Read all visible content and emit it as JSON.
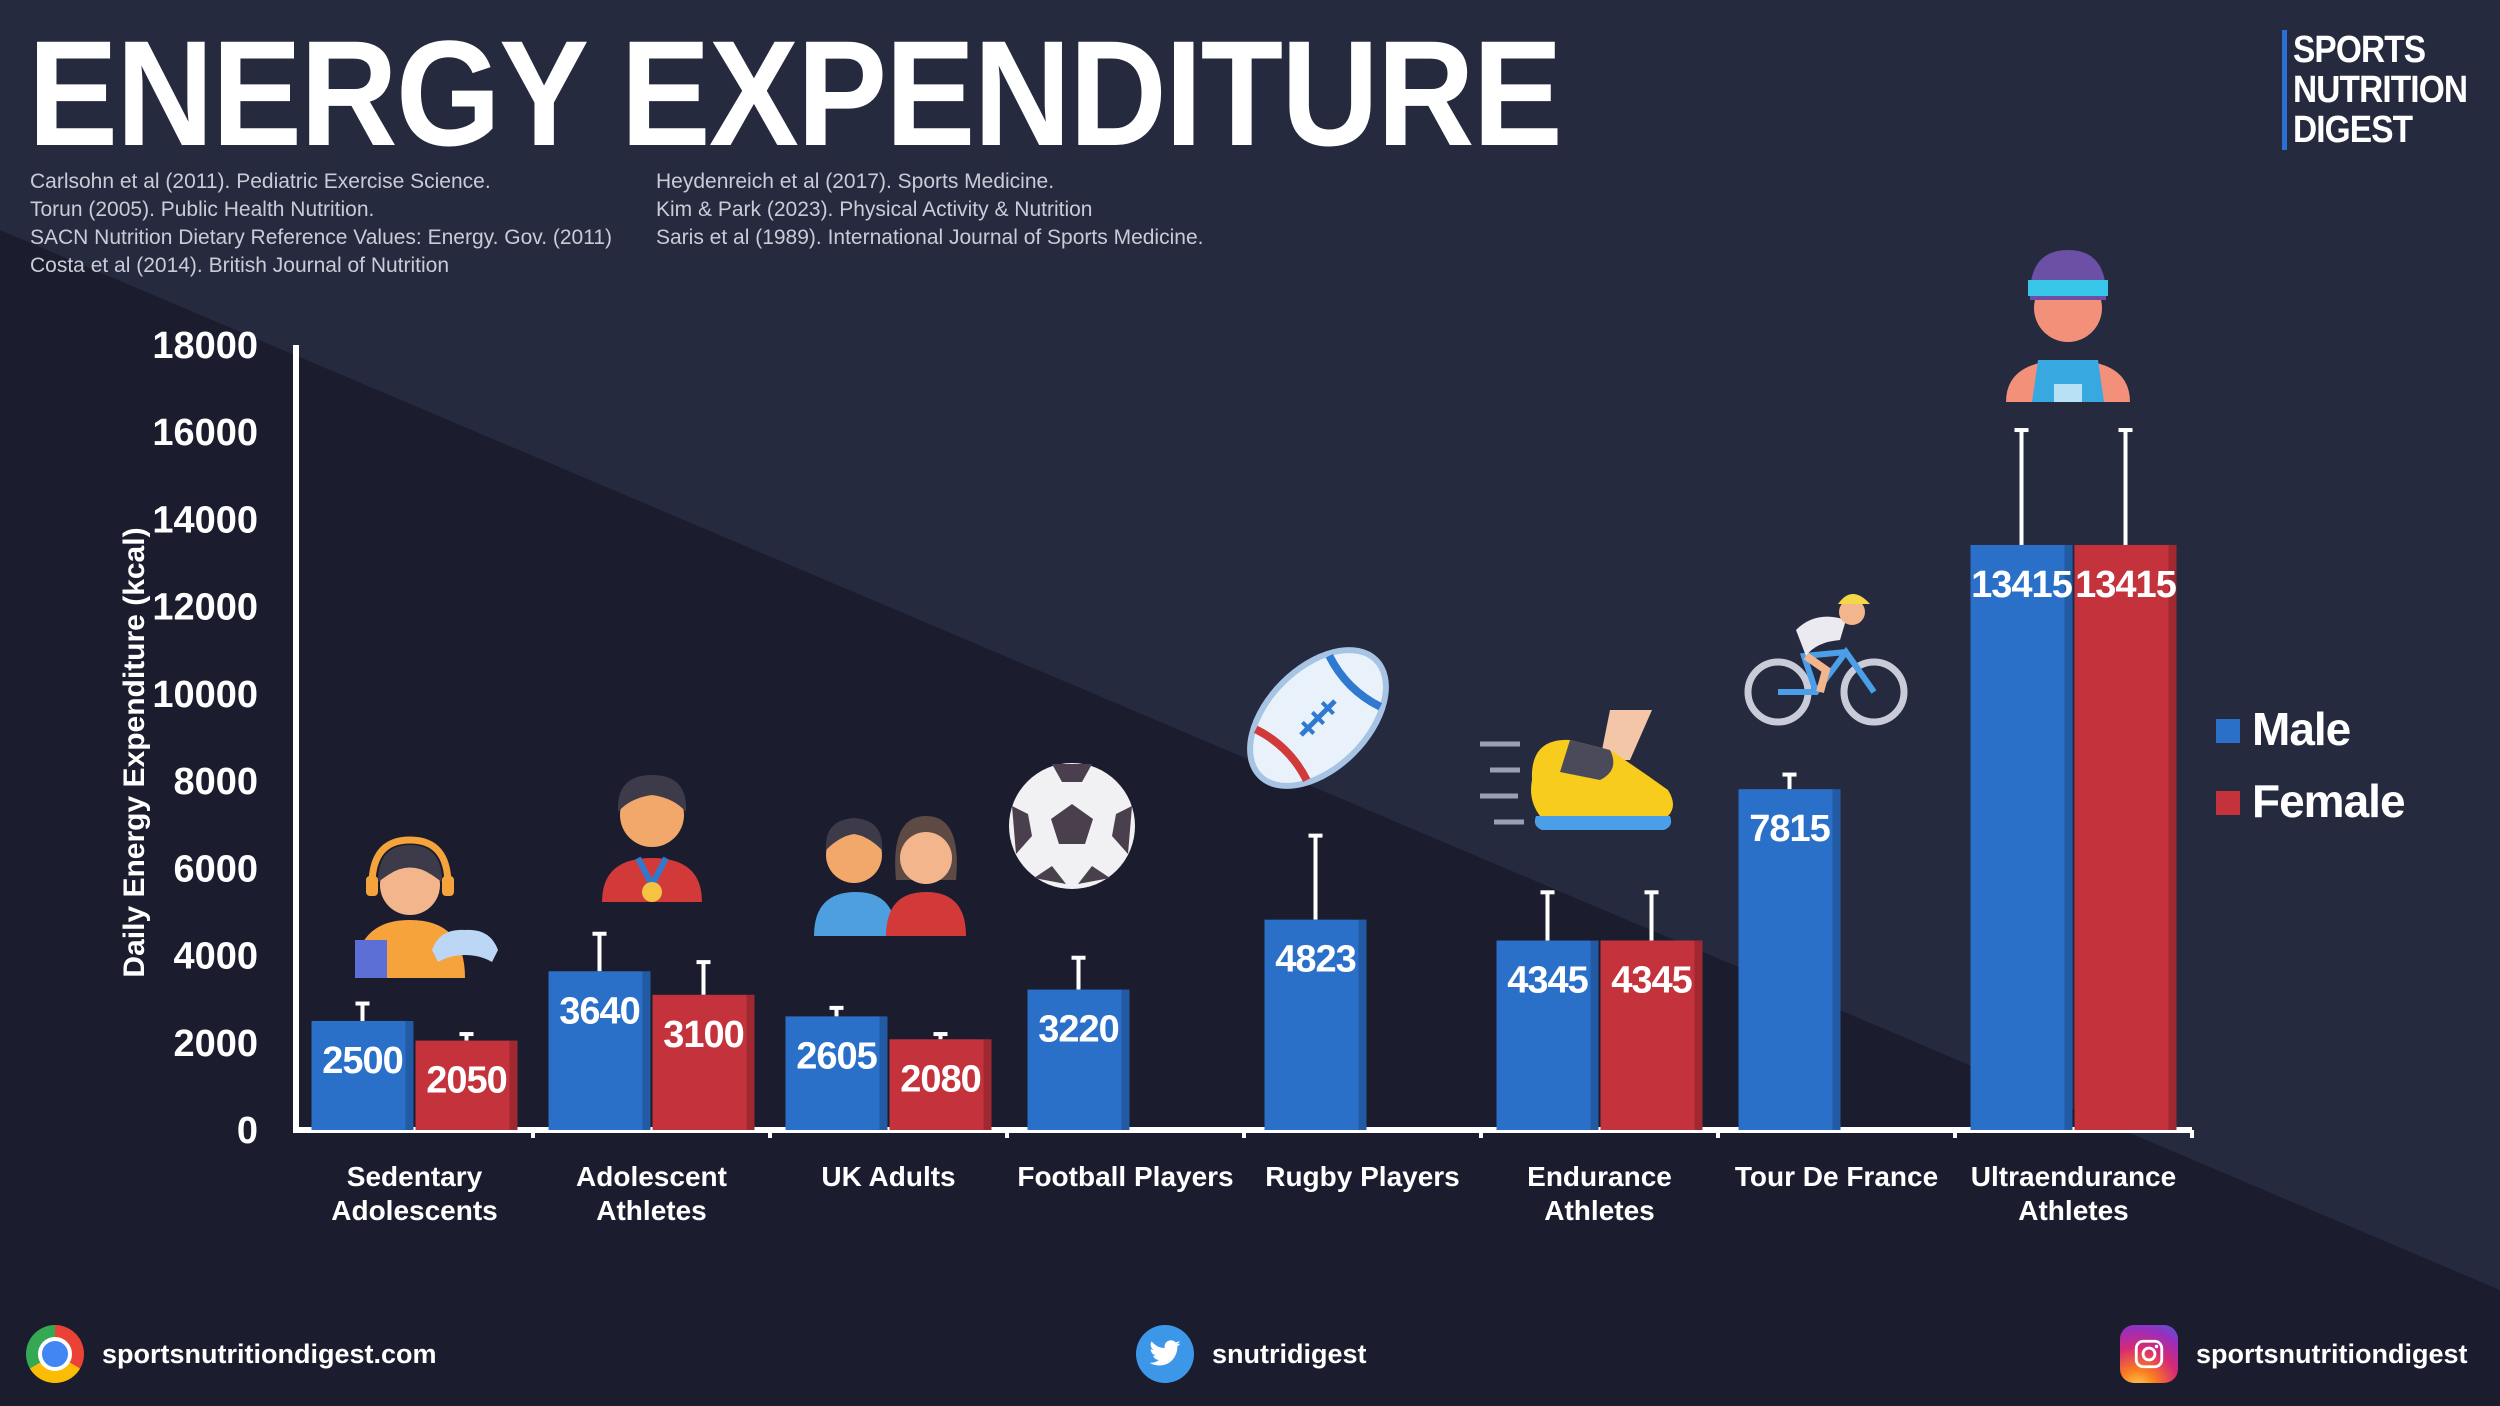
{
  "header": {
    "title": "ENERGY EXPENDITURE",
    "refs_left": [
      "Carlsohn et al (2011). Pediatric Exercise Science.",
      "Torun (2005). Public Health Nutrition.",
      "SACN Nutrition Dietary Reference Values: Energy. Gov. (2011)",
      "Costa et al (2014). British Journal of Nutrition"
    ],
    "refs_right": [
      "Heydenreich et al (2017). Sports Medicine.",
      "Kim & Park (2023). Physical Activity & Nutrition",
      "Saris et al (1989). International Journal of Sports Medicine."
    ]
  },
  "brand": {
    "line1": "SPORTS",
    "line2": "NUTRITION",
    "line3": "DIGEST"
  },
  "colors": {
    "male": "#2a6fc8",
    "female": "#c4323c",
    "background": "#1b1d2e",
    "background_light": "#262a3f"
  },
  "icons": [
    "gamer-icon",
    "medal-athlete-icon",
    "couple-icon",
    "soccer-ball-icon",
    "rugby-ball-icon",
    "running-shoe-icon",
    "cyclist-icon",
    "athlete-headband-icon"
  ],
  "chart_data": {
    "type": "bar",
    "title": "ENERGY EXPENDITURE",
    "xlabel": "",
    "ylabel": "Daily Energy Expenditure (kcal)",
    "ylim": [
      0,
      18000
    ],
    "yticks": [
      0,
      2000,
      4000,
      6000,
      8000,
      10000,
      12000,
      14000,
      16000,
      18000
    ],
    "grid": false,
    "legend_position": "right",
    "categories": [
      [
        "Sedentary",
        "Adolescents"
      ],
      [
        "Adolescent",
        "Athletes"
      ],
      [
        "UK Adults"
      ],
      [
        "Football Players"
      ],
      [
        "Rugby Players"
      ],
      [
        "Endurance",
        "Athletes"
      ],
      [
        "Tour De France"
      ],
      [
        "Ultraendurance",
        "Athletes"
      ]
    ],
    "series": [
      {
        "name": "Male",
        "values": [
          2500,
          3640,
          2605,
          3220,
          4823,
          4345,
          7815,
          13415
        ],
        "error_upper": [
          2900,
          4500,
          2800,
          3950,
          6750,
          5450,
          8150,
          16050
        ]
      },
      {
        "name": "Female",
        "values": [
          2050,
          3100,
          null,
          null,
          null,
          4345,
          null,
          13415
        ],
        "error_upper": [
          2200,
          3850,
          null,
          null,
          null,
          5450,
          null,
          16050
        ]
      }
    ],
    "uk_adults_female": {
      "value": 2080,
      "error_upper": 2200
    }
  },
  "footer": {
    "website": "sportsnutritiondigest.com",
    "twitter": "snutridigest",
    "instagram": "sportsnutritiondigest"
  }
}
